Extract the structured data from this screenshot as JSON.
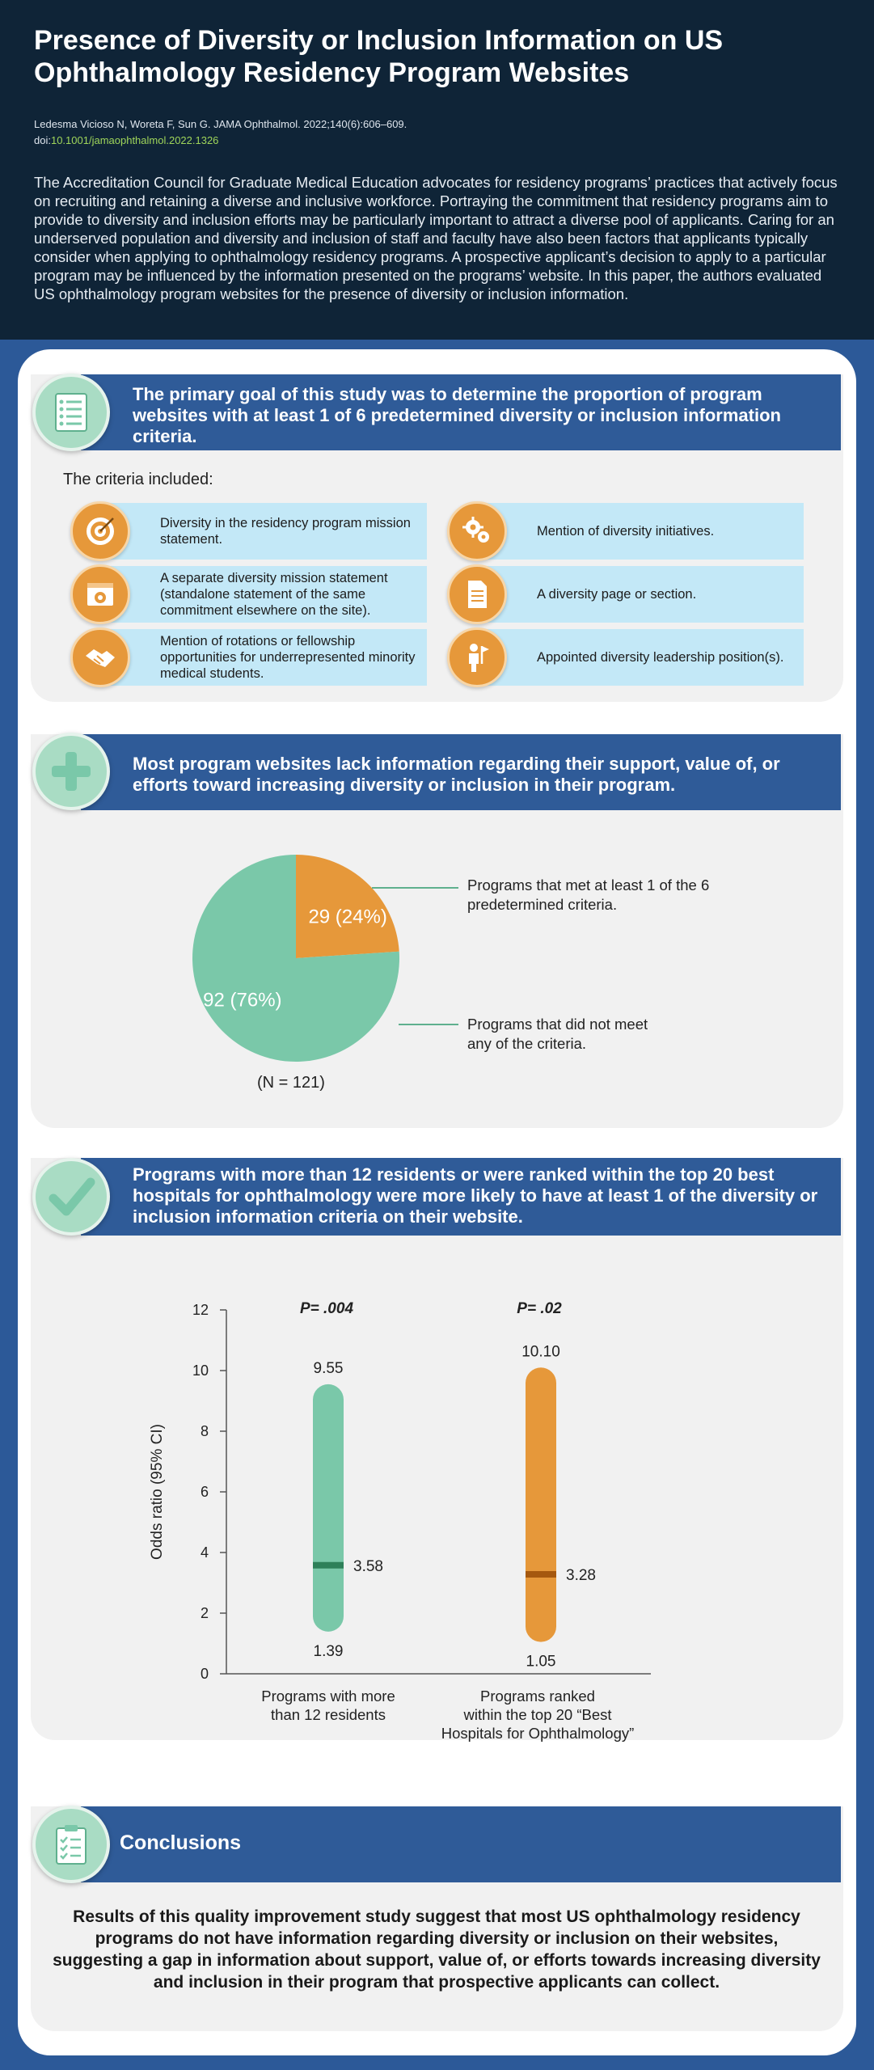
{
  "header": {
    "title": "Presence of Diversity or Inclusion Information on US Ophthalmology Residency Program Websites",
    "citation": "Ledesma Vicioso N, Woreta F, Sun G. JAMA Ophthalmol. 2022;140(6):606–609.",
    "doi_prefix": "doi:",
    "doi": "10.1001/jamaophthalmol.2022.1326",
    "intro": "The Accreditation Council for Graduate Medical Education advocates for residency programs’ practices that actively focus on recruiting and retaining a diverse and inclusive workforce. Portraying the commitment that residency programs aim to provide to diversity and inclusion efforts may be particularly important to attract a diverse pool of applicants. Caring for an underserved population and diversity and inclusion of staff and faculty have also been factors that applicants typically consider when applying to ophthalmology residency programs. A prospective applicant’s decision to apply to a particular program may be influenced by the information presented on the programs’ website. In this paper, the authors evaluated US ophthalmology program websites for the presence of diversity or inclusion information."
  },
  "section1": {
    "banner": "The primary goal of this study was to determine the proportion of program websites with at least 1 of 6 predetermined diversity or inclusion information criteria.",
    "criteria_intro": "The criteria included:",
    "criteria": [
      {
        "text": "Diversity in the residency program mission statement.",
        "icon": "target-icon"
      },
      {
        "text": "Mention of diversity initiatives.",
        "icon": "gears-icon"
      },
      {
        "text": "A separate diversity mission statement (standalone statement of the same commitment elsewhere on the site).",
        "icon": "webpage-target-icon"
      },
      {
        "text": "A diversity page or section.",
        "icon": "document-icon"
      },
      {
        "text": "Mention of rotations or fellowship opportunities for underrepresented minority medical students.",
        "icon": "handshake-icon"
      },
      {
        "text": "Appointed diversity leadership position(s).",
        "icon": "leader-flag-icon"
      }
    ]
  },
  "section2": {
    "banner": "Most program websites lack information regarding their support, value of, or efforts toward increasing diversity or inclusion in their program.",
    "n_label": "(N = 121)",
    "met_label": "Programs that met at least 1 of the 6 predetermined criteria.",
    "not_met_label": "Programs that did not meet any of the criteria."
  },
  "section3": {
    "banner": "Programs with more than 12 residents or were ranked within the top 20 best hospitals for ophthalmology were more likely to have at least 1 of the diversity or inclusion information criteria on their website."
  },
  "conclusions": {
    "title": "Conclusions",
    "text": "Results of this quality improvement study suggest that most US ophthalmology residency programs do not have information regarding diversity or inclusion on their websites, suggesting a gap in information about support, value of, or efforts towards increasing diversity and inclusion in their program that prospective applicants can collect."
  },
  "colors": {
    "header_bg": "#0f2437",
    "banner_blue": "#2f5b98",
    "green": "#7ac8a9",
    "orange": "#e6983a",
    "light_blue": "#c3e8f7",
    "doi_green": "#9fd55a"
  },
  "chart_data": [
    {
      "type": "pie",
      "categories": [
        "Programs that met at least 1 of the 6 predetermined criteria.",
        "Programs that did not meet any of the criteria."
      ],
      "values": [
        29,
        92
      ],
      "labels": [
        "29 (24%)",
        "92 (76%)"
      ],
      "colors": [
        "#e6983a",
        "#7ac8a9"
      ],
      "note": "(N = 121)"
    },
    {
      "type": "bar",
      "ylabel": "Odds ratio (95% CI)",
      "ylim": [
        0,
        12
      ],
      "yticks": [
        "0",
        "2",
        "4",
        "6",
        "8",
        "10",
        "12"
      ],
      "categories": [
        "Programs with more than 12 residents",
        "Programs ranked within the top 20 “Best Hospitals for Ophthalmology”"
      ],
      "series": [
        {
          "odds_ratio": 3.58,
          "lower": 1.39,
          "upper": 9.55,
          "p": "P= .004",
          "labels": [
            "9.55",
            "3.58",
            "1.39"
          ],
          "color": "#7ac8a9",
          "mark_color": "#2e8059"
        },
        {
          "odds_ratio": 3.28,
          "lower": 1.05,
          "upper": 10.1,
          "p": "P= .02",
          "labels": [
            "10.10",
            "3.28",
            "1.05"
          ],
          "color": "#e6983a",
          "mark_color": "#a5580f"
        }
      ]
    }
  ]
}
